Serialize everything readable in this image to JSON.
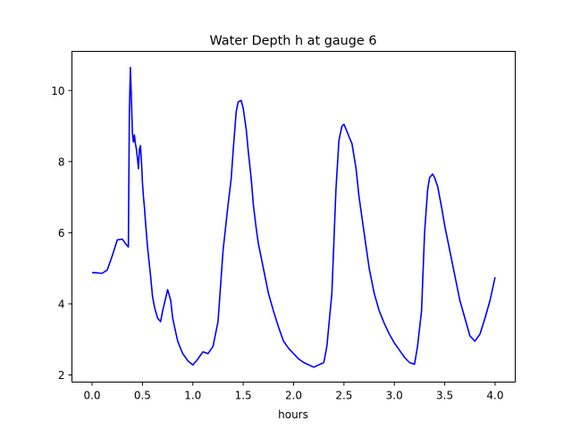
{
  "chart_data": {
    "type": "line",
    "title": "Water Depth h at gauge 6",
    "xlabel": "hours",
    "ylabel": "",
    "xlim": [
      -0.2,
      4.2
    ],
    "ylim": [
      1.8,
      11.1
    ],
    "xticks": [
      0.0,
      0.5,
      1.0,
      1.5,
      2.0,
      2.5,
      3.0,
      3.5,
      4.0
    ],
    "xtick_labels": [
      "0.0",
      "0.5",
      "1.0",
      "1.5",
      "2.0",
      "2.5",
      "3.0",
      "3.5",
      "4.0"
    ],
    "yticks": [
      2,
      4,
      6,
      8,
      10
    ],
    "ytick_labels": [
      "2",
      "4",
      "6",
      "8",
      "10"
    ],
    "grid": false,
    "series": [
      {
        "color": "#0000ff",
        "x": [
          0.0,
          0.05,
          0.1,
          0.15,
          0.2,
          0.25,
          0.3,
          0.33,
          0.36,
          0.37,
          0.38,
          0.39,
          0.4,
          0.41,
          0.42,
          0.43,
          0.44,
          0.45,
          0.46,
          0.47,
          0.48,
          0.49,
          0.5,
          0.51,
          0.52,
          0.53,
          0.55,
          0.58,
          0.6,
          0.62,
          0.65,
          0.68,
          0.7,
          0.75,
          0.78,
          0.8,
          0.83,
          0.85,
          0.87,
          0.9,
          0.95,
          1.0,
          1.05,
          1.1,
          1.15,
          1.2,
          1.25,
          1.3,
          1.35,
          1.38,
          1.4,
          1.43,
          1.45,
          1.48,
          1.5,
          1.53,
          1.55,
          1.58,
          1.6,
          1.63,
          1.65,
          1.7,
          1.75,
          1.8,
          1.85,
          1.9,
          1.95,
          2.0,
          2.05,
          2.1,
          2.2,
          2.3,
          2.33,
          2.38,
          2.42,
          2.45,
          2.48,
          2.5,
          2.53,
          2.55,
          2.58,
          2.62,
          2.65,
          2.7,
          2.75,
          2.8,
          2.85,
          2.9,
          2.95,
          3.0,
          3.05,
          3.1,
          3.15,
          3.2,
          3.23,
          3.27,
          3.3,
          3.33,
          3.35,
          3.38,
          3.4,
          3.43,
          3.47,
          3.5,
          3.55,
          3.6,
          3.65,
          3.7,
          3.75,
          3.8,
          3.85,
          3.9,
          3.95,
          4.0
        ],
        "y": [
          4.88,
          4.87,
          4.86,
          4.95,
          5.35,
          5.8,
          5.82,
          5.7,
          5.6,
          9.4,
          10.65,
          9.8,
          8.8,
          8.55,
          8.75,
          8.5,
          8.35,
          8.1,
          7.8,
          8.35,
          8.45,
          8.0,
          7.4,
          7.0,
          6.7,
          6.3,
          5.6,
          4.8,
          4.2,
          3.9,
          3.6,
          3.5,
          3.8,
          4.4,
          4.1,
          3.6,
          3.2,
          2.95,
          2.8,
          2.6,
          2.4,
          2.28,
          2.45,
          2.65,
          2.6,
          2.8,
          3.5,
          5.5,
          6.8,
          7.5,
          8.3,
          9.4,
          9.68,
          9.72,
          9.5,
          8.9,
          8.3,
          7.5,
          6.8,
          6.1,
          5.7,
          5.0,
          4.3,
          3.8,
          3.35,
          2.95,
          2.75,
          2.6,
          2.45,
          2.35,
          2.22,
          2.35,
          2.8,
          4.3,
          7.2,
          8.6,
          9.0,
          9.05,
          8.85,
          8.7,
          8.5,
          7.8,
          7.0,
          6.0,
          5.0,
          4.3,
          3.8,
          3.45,
          3.15,
          2.9,
          2.7,
          2.5,
          2.35,
          2.3,
          2.8,
          3.8,
          6.0,
          7.2,
          7.55,
          7.65,
          7.55,
          7.3,
          6.7,
          6.2,
          5.5,
          4.8,
          4.1,
          3.6,
          3.1,
          2.95,
          3.15,
          3.6,
          4.1,
          4.75
        ]
      }
    ]
  }
}
